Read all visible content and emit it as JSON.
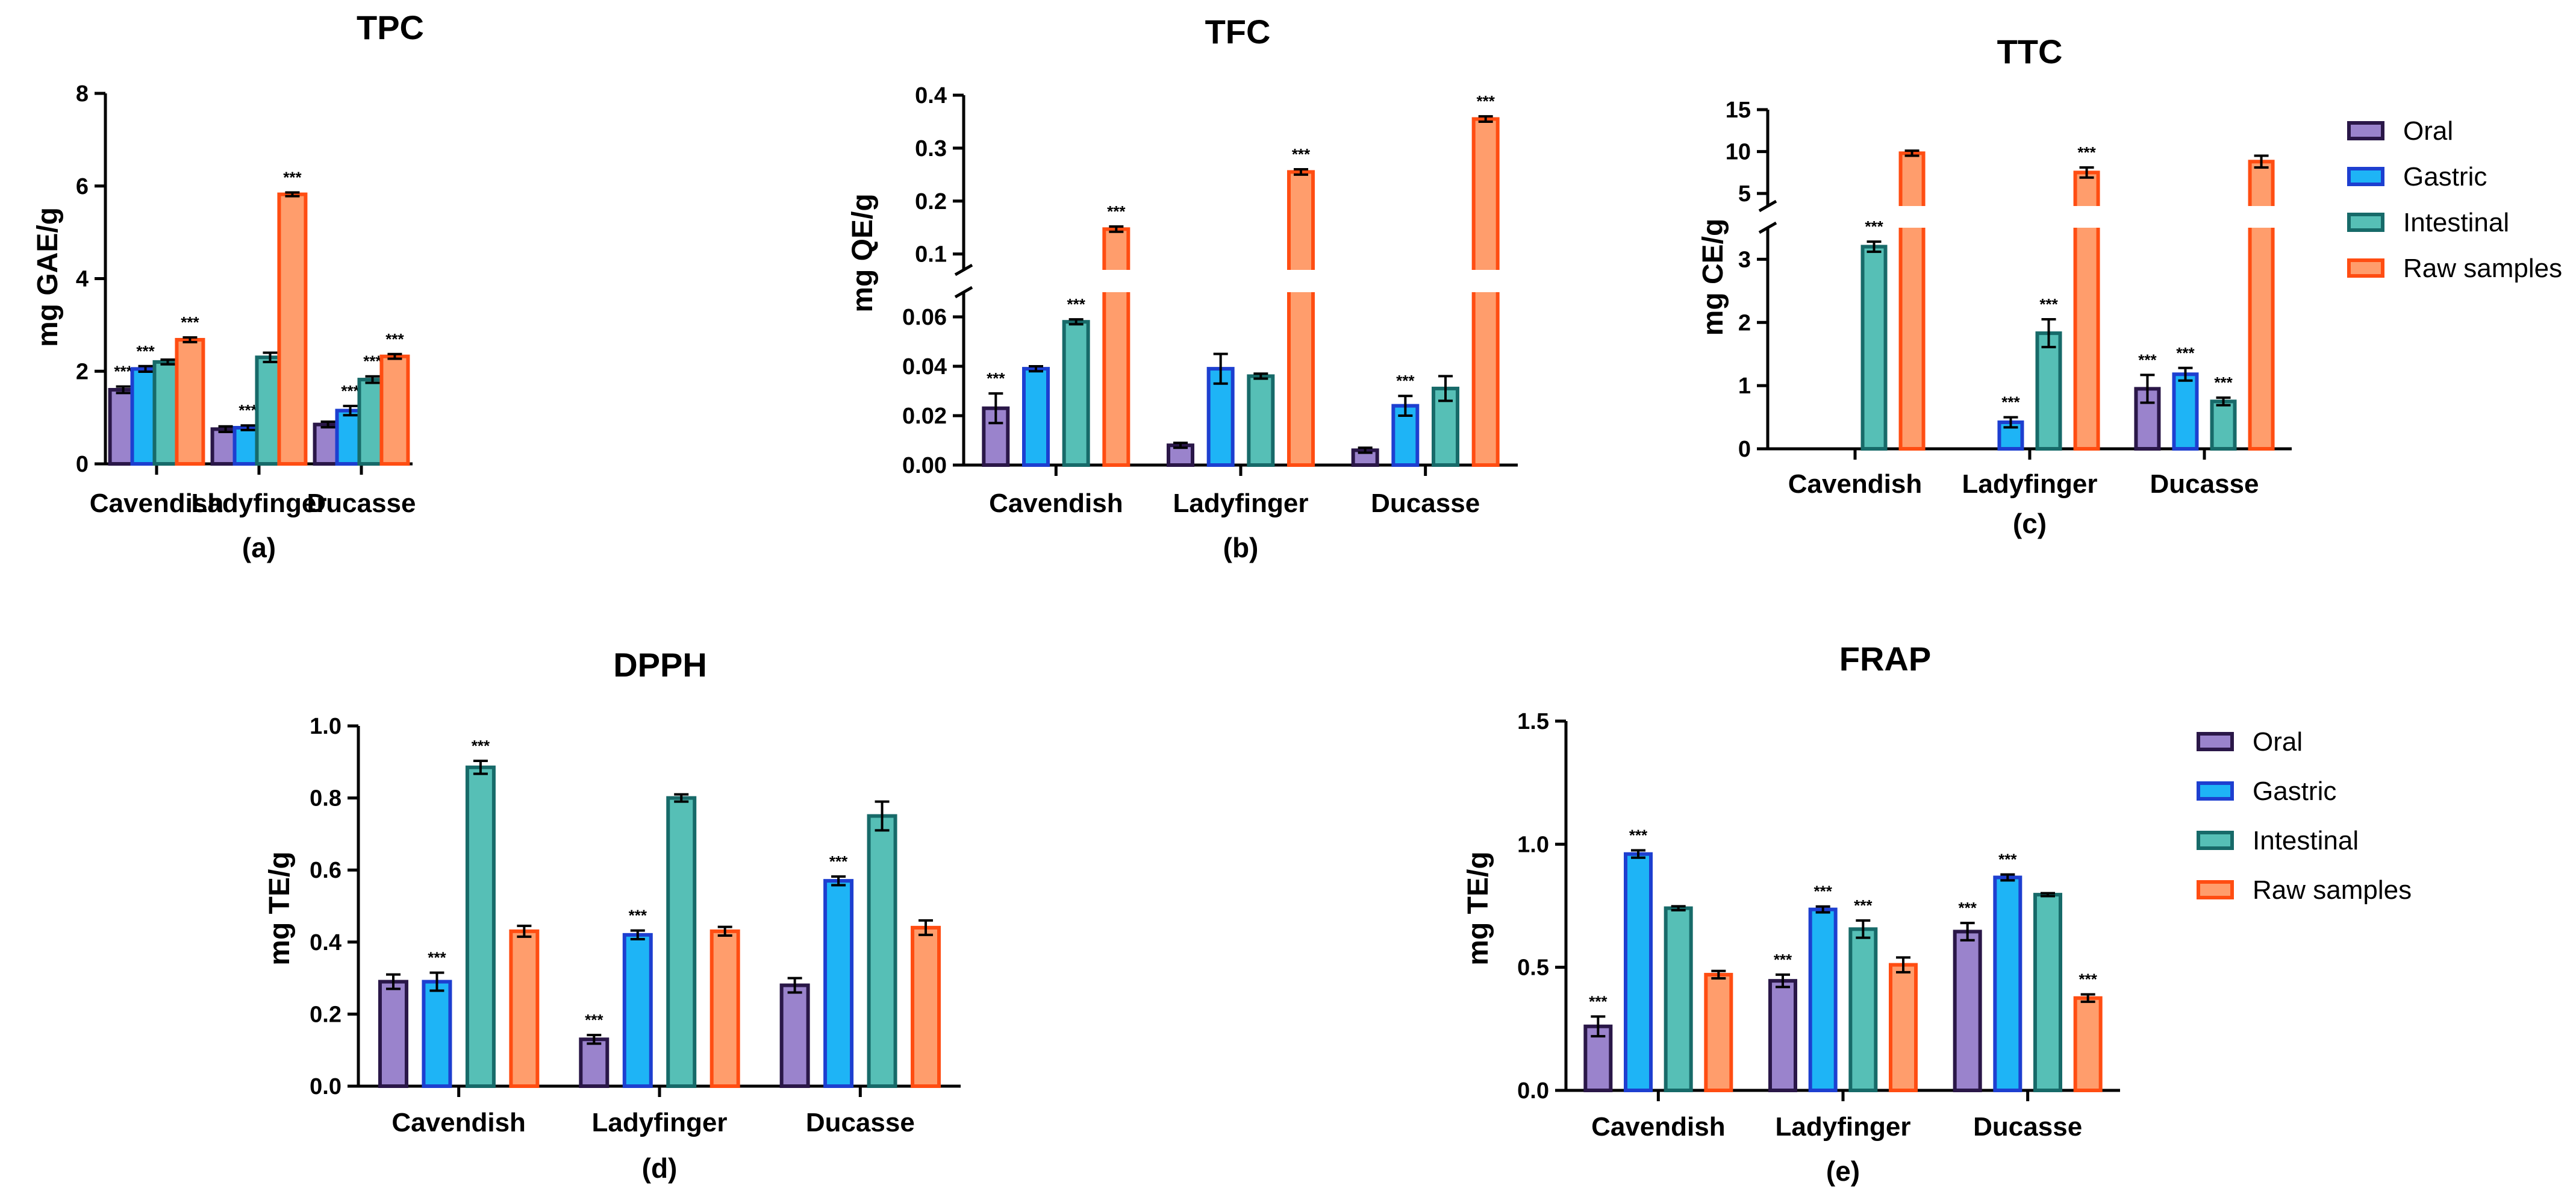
{
  "colors": {
    "Oral": {
      "fill": "#9a83cc",
      "stroke": "#2a1748"
    },
    "Gastric": {
      "fill": "#1eb4f6",
      "stroke": "#1d3fd0"
    },
    "Intestinal": {
      "fill": "#56bfb6",
      "stroke": "#176a69"
    },
    "Raw samples": {
      "fill": "#ff9d6c",
      "stroke": "#ff4d12"
    }
  },
  "legend_top": {
    "entries": [
      "Oral",
      "Gastric",
      "Intestinal",
      "Raw samples"
    ]
  },
  "legend_bottom": {
    "entries": [
      "Oral",
      "Gastric",
      "Intestinal",
      "Raw samples"
    ]
  },
  "chart_data": [
    {
      "id": "a",
      "type": "bar",
      "title": "TPC",
      "ylabel": "mg GAE/g",
      "panel_label": "(a)",
      "categories": [
        "Cavendish",
        "Ladyfinger",
        "Ducasse"
      ],
      "ylim": [
        0,
        8
      ],
      "yticks": [
        "0",
        "2",
        "4",
        "6",
        "8"
      ],
      "series": [
        {
          "name": "Oral",
          "values": [
            1.6,
            0.75,
            0.85
          ],
          "errors": [
            0.07,
            0.06,
            0.06
          ],
          "sig": [
            "***",
            "",
            ""
          ]
        },
        {
          "name": "Gastric",
          "values": [
            2.05,
            0.78,
            1.15
          ],
          "errors": [
            0.06,
            0.05,
            0.1
          ],
          "sig": [
            "***",
            "***",
            "***"
          ]
        },
        {
          "name": "Intestinal",
          "values": [
            2.2,
            2.3,
            1.82
          ],
          "errors": [
            0.05,
            0.1,
            0.07
          ],
          "sig": [
            "",
            "",
            "***"
          ]
        },
        {
          "name": "Raw samples",
          "values": [
            2.68,
            5.82,
            2.32
          ],
          "errors": [
            0.05,
            0.04,
            0.05
          ],
          "sig": [
            "***",
            "***",
            "***"
          ]
        }
      ]
    },
    {
      "id": "b",
      "type": "bar",
      "title": "TFC",
      "ylabel": "mg QE/g",
      "panel_label": "(b)",
      "categories": [
        "Cavendish",
        "Ladyfinger",
        "Ducasse"
      ],
      "ylim": [
        0,
        0.4
      ],
      "yticks": [
        "0.00",
        "0.02",
        "0.04",
        "0.06",
        "0.1",
        "0.2",
        "0.3",
        "0.4"
      ],
      "axis_break": [
        0.07,
        0.07
      ],
      "series": [
        {
          "name": "Oral",
          "values": [
            0.023,
            0.008,
            0.006
          ],
          "errors": [
            0.006,
            0.001,
            0.001
          ],
          "sig": [
            "***",
            "",
            ""
          ]
        },
        {
          "name": "Gastric",
          "values": [
            0.039,
            0.039,
            0.024
          ],
          "errors": [
            0.001,
            0.006,
            0.004
          ],
          "sig": [
            "",
            "",
            "***"
          ]
        },
        {
          "name": "Intestinal",
          "values": [
            0.058,
            0.036,
            0.031
          ],
          "errors": [
            0.001,
            0.001,
            0.005
          ],
          "sig": [
            "***",
            "",
            ""
          ]
        },
        {
          "name": "Raw samples",
          "values": [
            0.147,
            0.255,
            0.355
          ],
          "errors": [
            0.005,
            0.005,
            0.005
          ],
          "sig": [
            "***",
            "***",
            "***"
          ]
        }
      ]
    },
    {
      "id": "c",
      "type": "bar",
      "title": "TTC",
      "ylabel": "mg CE/g",
      "panel_label": "(c)",
      "categories": [
        "Cavendish",
        "Ladyfinger",
        "Ducasse"
      ],
      "ylim": [
        0,
        15
      ],
      "yticks": [
        "0",
        "1",
        "2",
        "3",
        "5",
        "10",
        "15"
      ],
      "axis_break": [
        3.5,
        3.5
      ],
      "series": [
        {
          "name": "Oral",
          "values": [
            0,
            0,
            0.95
          ],
          "errors": [
            0,
            0,
            0.22
          ],
          "sig": [
            "",
            "",
            "***"
          ]
        },
        {
          "name": "Gastric",
          "values": [
            0,
            0.42,
            1.18
          ],
          "errors": [
            0,
            0.08,
            0.1
          ],
          "sig": [
            "",
            "***",
            "***"
          ]
        },
        {
          "name": "Intestinal",
          "values": [
            3.2,
            1.83,
            0.75
          ],
          "errors": [
            0.08,
            0.22,
            0.06
          ],
          "sig": [
            "***",
            "***",
            "***"
          ]
        },
        {
          "name": "Raw samples",
          "values": [
            9.8,
            7.5,
            8.8
          ],
          "errors": [
            0.3,
            0.6,
            0.7
          ],
          "sig": [
            "",
            "***",
            ""
          ]
        }
      ]
    },
    {
      "id": "d",
      "type": "bar",
      "title": "DPPH",
      "ylabel": "mg TE/g",
      "panel_label": "(d)",
      "categories": [
        "Cavendish",
        "Ladyfinger",
        "Ducasse"
      ],
      "ylim": [
        0,
        1.0
      ],
      "yticks": [
        "0.0",
        "0.2",
        "0.4",
        "0.6",
        "0.8",
        "1.0"
      ],
      "series": [
        {
          "name": "Oral",
          "values": [
            0.29,
            0.13,
            0.28
          ],
          "errors": [
            0.02,
            0.012,
            0.02
          ],
          "sig": [
            "",
            "***",
            ""
          ]
        },
        {
          "name": "Gastric",
          "values": [
            0.29,
            0.42,
            0.57
          ],
          "errors": [
            0.025,
            0.012,
            0.012
          ],
          "sig": [
            "***",
            "***",
            "***"
          ]
        },
        {
          "name": "Intestinal",
          "values": [
            0.885,
            0.8,
            0.75
          ],
          "errors": [
            0.018,
            0.01,
            0.04
          ],
          "sig": [
            "***",
            "",
            ""
          ]
        },
        {
          "name": "Raw samples",
          "values": [
            0.43,
            0.43,
            0.44
          ],
          "errors": [
            0.015,
            0.012,
            0.02
          ],
          "sig": [
            "",
            "",
            ""
          ]
        }
      ]
    },
    {
      "id": "e",
      "type": "bar",
      "title": "FRAP",
      "ylabel": "mg TE/g",
      "panel_label": "(e)",
      "categories": [
        "Cavendish",
        "Ladyfinger",
        "Ducasse"
      ],
      "ylim": [
        0,
        1.5
      ],
      "yticks": [
        "0.0",
        "0.5",
        "1.0",
        "1.5"
      ],
      "series": [
        {
          "name": "Oral",
          "values": [
            0.26,
            0.445,
            0.645
          ],
          "errors": [
            0.04,
            0.025,
            0.035
          ],
          "sig": [
            "***",
            "***",
            "***"
          ]
        },
        {
          "name": "Gastric",
          "values": [
            0.96,
            0.735,
            0.865
          ],
          "errors": [
            0.015,
            0.012,
            0.012
          ],
          "sig": [
            "***",
            "***",
            "***"
          ]
        },
        {
          "name": "Intestinal",
          "values": [
            0.74,
            0.655,
            0.795
          ],
          "errors": [
            0.008,
            0.035,
            0.006
          ],
          "sig": [
            "",
            "***",
            ""
          ]
        },
        {
          "name": "Raw samples",
          "values": [
            0.47,
            0.51,
            0.375
          ],
          "errors": [
            0.015,
            0.03,
            0.015
          ],
          "sig": [
            "",
            "",
            "***"
          ]
        }
      ]
    }
  ]
}
